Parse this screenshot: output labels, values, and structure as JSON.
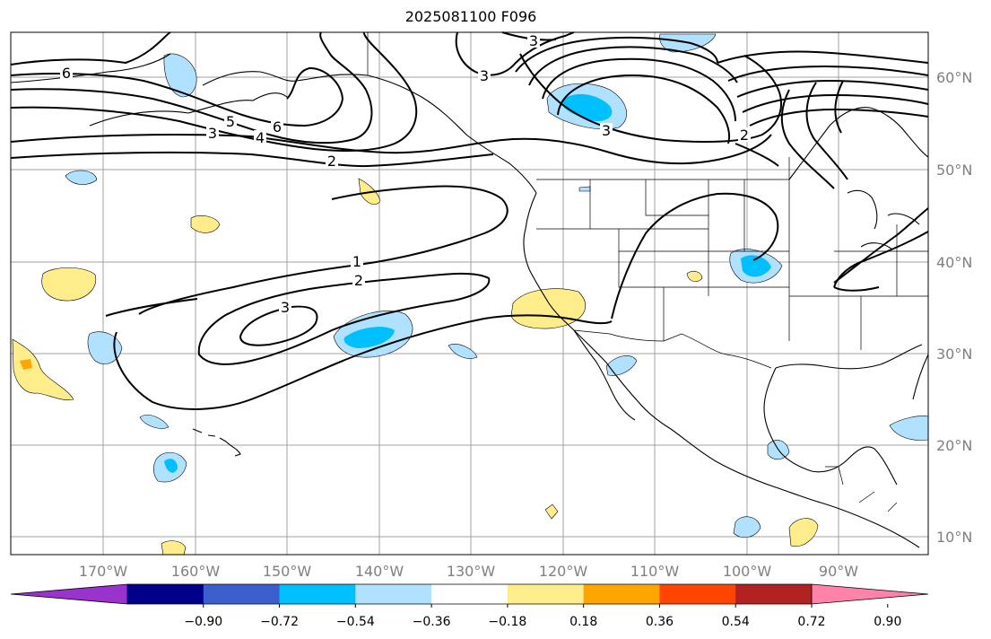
{
  "title": "2025081100 F096",
  "lon_labels": [
    "170°W",
    "160°W",
    "150°W",
    "140°W",
    "130°W",
    "120°W",
    "110°W",
    "100°W",
    "90°W"
  ],
  "lat_labels": [
    "60°N",
    "50°N",
    "40°N",
    "30°N",
    "20°N",
    "10°N"
  ],
  "colorbar": {
    "ticks": [
      "−0.90",
      "−0.72",
      "−0.54",
      "−0.36",
      "−0.18",
      "0.18",
      "0.36",
      "0.54",
      "0.72",
      "0.90"
    ],
    "colors": [
      "#9a32cd",
      "#00008b",
      "#3a5fcd",
      "#00bfff",
      "#b0e2ff",
      "#ffffff",
      "#ffec8b",
      "#ffa500",
      "#ff4500",
      "#b22222",
      "#ff82ab"
    ]
  },
  "contour_labels": [
    {
      "text": "6"
    },
    {
      "text": "5"
    },
    {
      "text": "6"
    },
    {
      "text": "4"
    },
    {
      "text": "3"
    },
    {
      "text": "2"
    },
    {
      "text": "3"
    },
    {
      "text": "3"
    },
    {
      "text": "3"
    },
    {
      "text": "1"
    },
    {
      "text": "2"
    },
    {
      "text": "3"
    },
    {
      "text": "2"
    }
  ]
}
